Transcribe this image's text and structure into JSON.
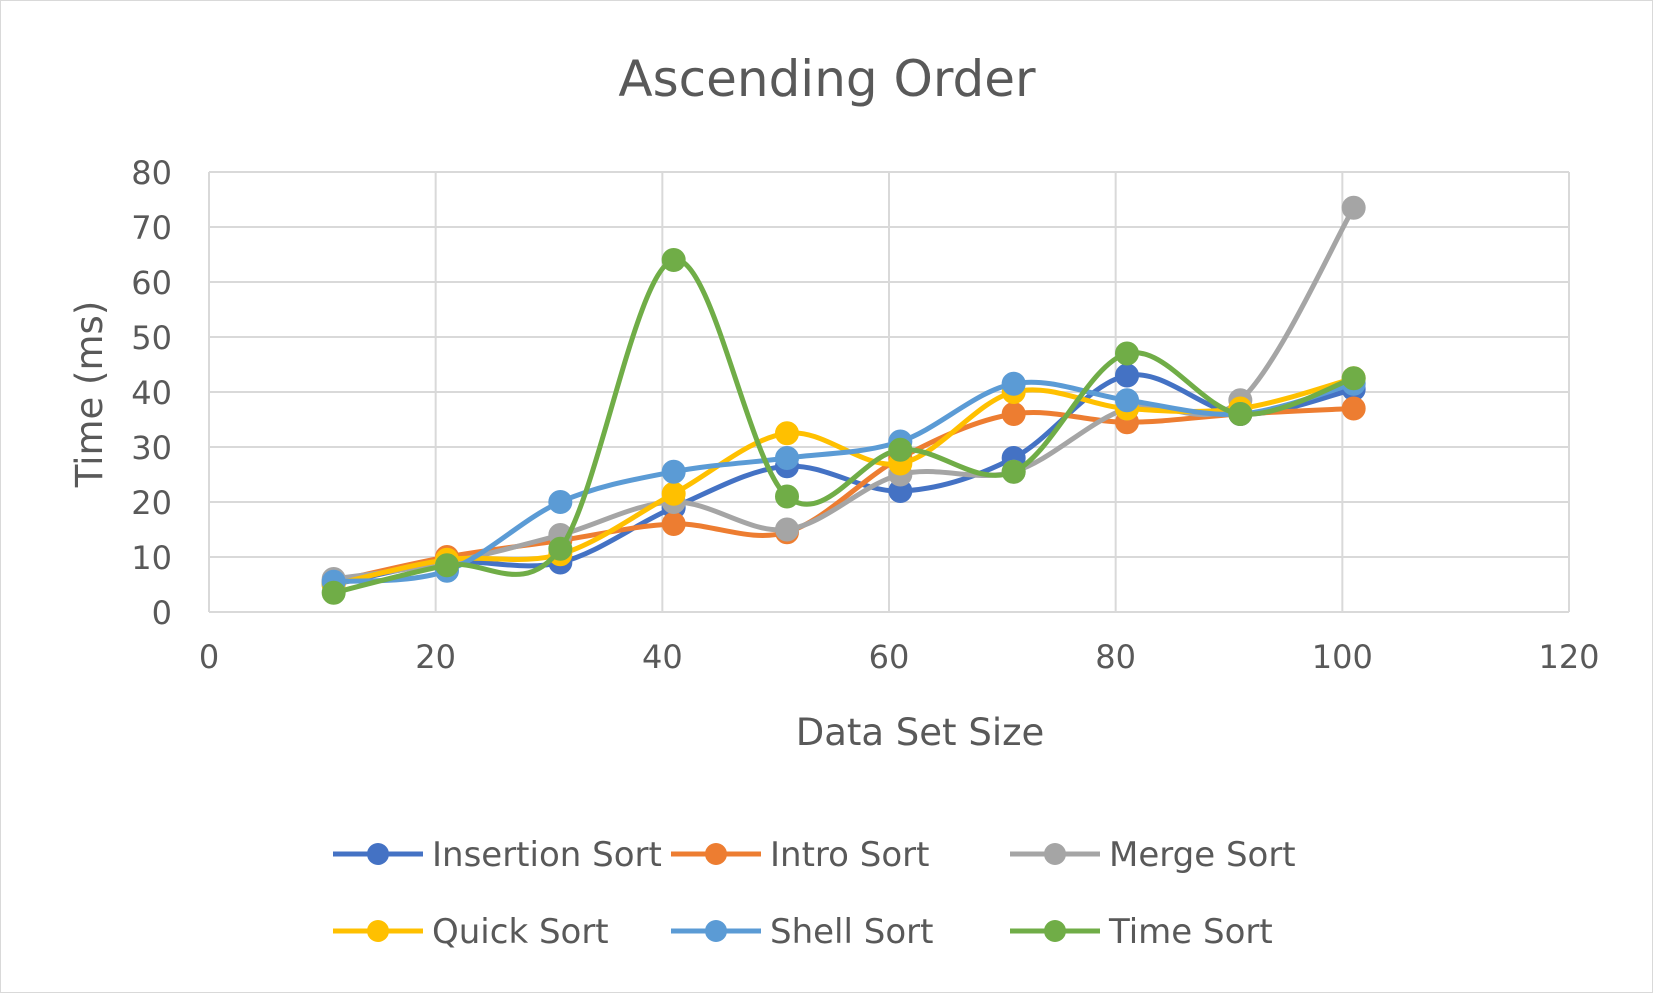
{
  "chart_data": {
    "type": "line",
    "title": "Ascending Order",
    "xlabel": "Data Set Size",
    "ylabel": "Time (ms)",
    "xlim": [
      0,
      120
    ],
    "ylim": [
      0,
      80
    ],
    "x_ticks": [
      0,
      20,
      40,
      60,
      80,
      100,
      120
    ],
    "y_ticks": [
      0,
      10,
      20,
      30,
      40,
      50,
      60,
      70,
      80
    ],
    "grid": true,
    "smooth": true,
    "legend_position": "bottom",
    "x": [
      11,
      21,
      31,
      41,
      51,
      61,
      71,
      81,
      91,
      101
    ],
    "series": [
      {
        "name": "Insertion Sort",
        "color": "#4472C4",
        "values": [
          5,
          9,
          9,
          19,
          26.5,
          22,
          28,
          43,
          36,
          40.5
        ]
      },
      {
        "name": "Intro Sort",
        "color": "#ED7D31",
        "values": [
          5.5,
          10,
          13,
          16,
          14.5,
          28,
          36,
          34.5,
          36,
          37
        ]
      },
      {
        "name": "Merge Sort",
        "color": "#A5A5A5",
        "values": [
          6,
          9,
          14,
          20,
          15,
          25,
          25.5,
          37,
          38.5,
          73.5
        ]
      },
      {
        "name": "Quick Sort",
        "color": "#FFC000",
        "values": [
          5,
          9.5,
          10.5,
          21.5,
          32.5,
          27,
          40,
          37,
          37,
          42.5
        ]
      },
      {
        "name": "Shell Sort",
        "color": "#5B9BD5",
        "values": [
          5.5,
          7.5,
          20,
          25.5,
          28,
          31,
          41.5,
          38.5,
          36,
          41.5
        ]
      },
      {
        "name": "Time Sort",
        "color": "#70AD47",
        "values": [
          3.5,
          8.5,
          11.5,
          64,
          21,
          29.5,
          25.5,
          47,
          36,
          42.5
        ]
      }
    ]
  }
}
